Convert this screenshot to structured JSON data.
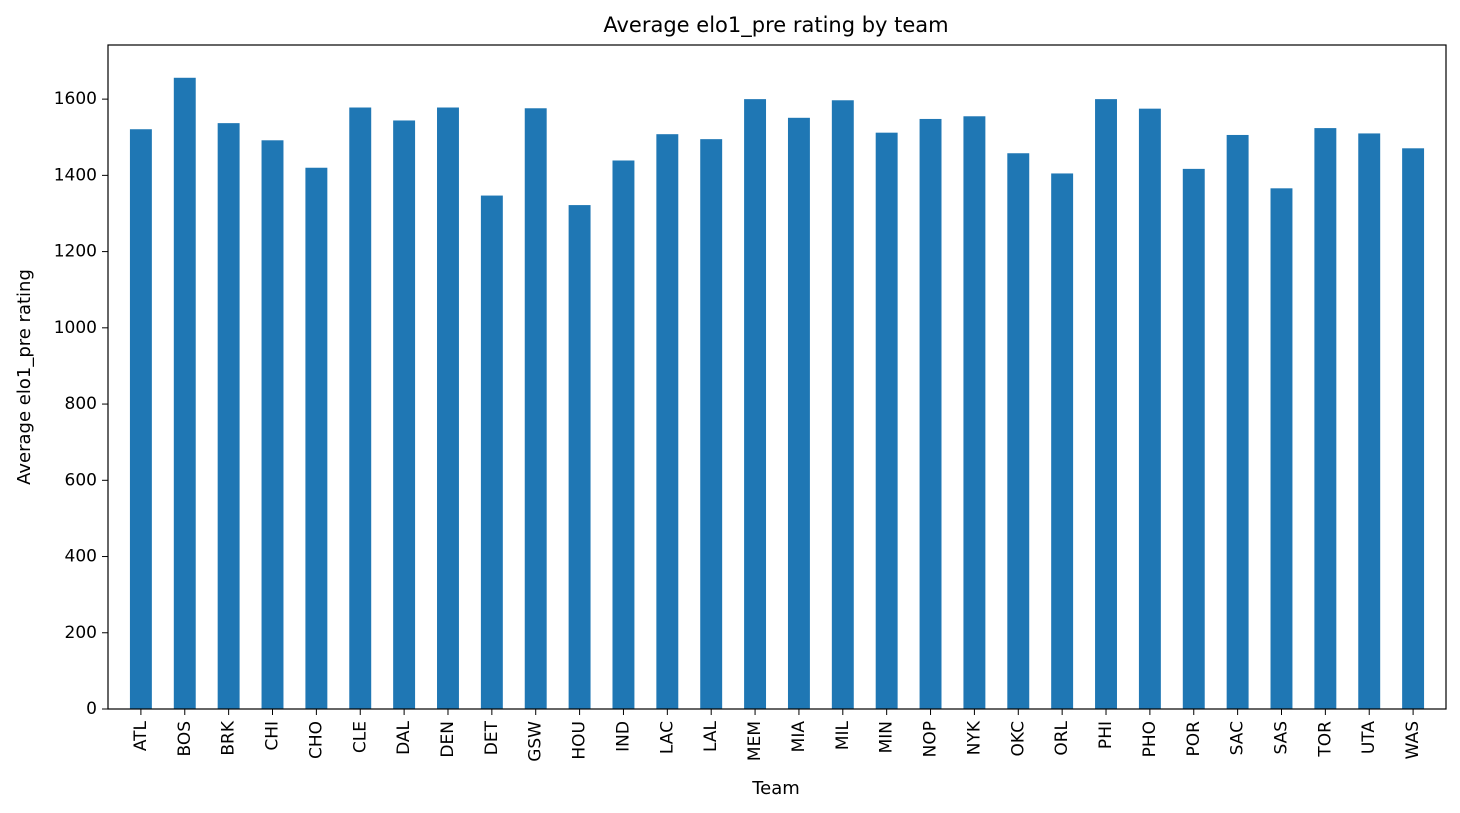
{
  "chart_data": {
    "type": "bar",
    "title": "Average elo1_pre rating by team",
    "xlabel": "Team",
    "ylabel": "Average elo1_pre rating",
    "categories": [
      "ATL",
      "BOS",
      "BRK",
      "CHI",
      "CHO",
      "CLE",
      "DAL",
      "DEN",
      "DET",
      "GSW",
      "HOU",
      "IND",
      "LAC",
      "LAL",
      "MEM",
      "MIA",
      "MIL",
      "MIN",
      "NOP",
      "NYK",
      "OKC",
      "ORL",
      "PHI",
      "PHO",
      "POR",
      "SAC",
      "SAS",
      "TOR",
      "UTA",
      "WAS"
    ],
    "values": [
      1521,
      1656,
      1537,
      1492,
      1420,
      1578,
      1544,
      1578,
      1347,
      1576,
      1322,
      1439,
      1508,
      1495,
      1600,
      1551,
      1597,
      1512,
      1548,
      1555,
      1458,
      1405,
      1600,
      1575,
      1417,
      1506,
      1366,
      1524,
      1510,
      1471
    ],
    "ylim": [
      0,
      1742
    ],
    "yticks": [
      0,
      200,
      400,
      600,
      800,
      1000,
      1200,
      1400,
      1600
    ],
    "grid": false,
    "bar_color": "#1f77b4"
  }
}
